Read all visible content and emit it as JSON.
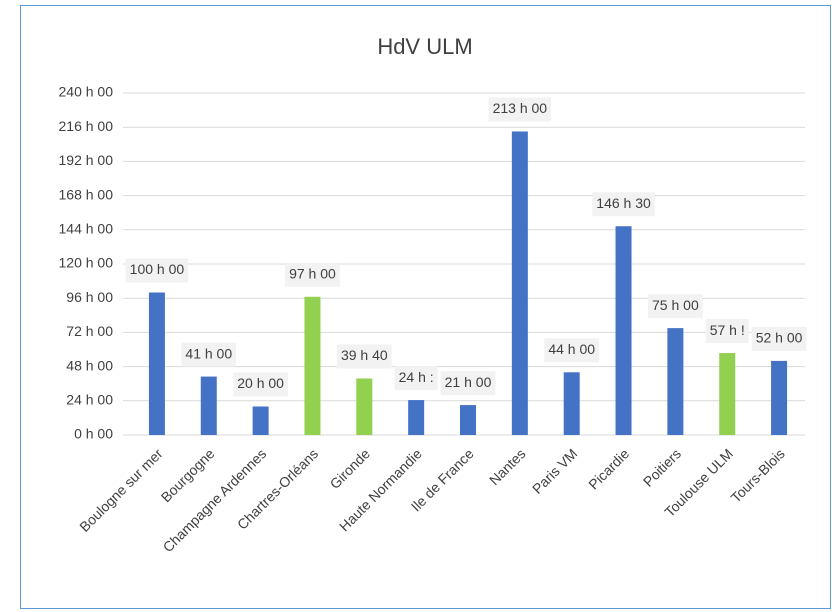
{
  "chart_data": {
    "type": "bar",
    "title": "HdV ULM",
    "categories": [
      "Boulogne sur mer",
      "Bourgogne",
      "Champagne Ardennes",
      "Chartres-Orléans",
      "Gironde",
      "Haute Normandie",
      "Ile de France",
      "Nantes",
      "Paris VM",
      "Picardie",
      "Poitiers",
      "Toulouse ULM",
      "Tours-Blois"
    ],
    "values": [
      100,
      41,
      20,
      97,
      39.667,
      24.5,
      21,
      213,
      44,
      146.5,
      75,
      57.5,
      52
    ],
    "value_labels": [
      "100 h 00",
      "41 h 00",
      "20 h 00",
      "97 h 00",
      "39 h 40",
      "24 h :",
      "21 h 00",
      "213 h 00",
      "44 h 00",
      "146 h 30",
      "75 h 00",
      "57 h !",
      "52 h 00"
    ],
    "colors": [
      "#4472c4",
      "#4472c4",
      "#4472c4",
      "#92d050",
      "#92d050",
      "#4472c4",
      "#4472c4",
      "#4472c4",
      "#4472c4",
      "#4472c4",
      "#4472c4",
      "#92d050",
      "#4472c4"
    ],
    "ylim": [
      0,
      240
    ],
    "yticks": [
      {
        "value": 0,
        "label": "0 h 00"
      },
      {
        "value": 24,
        "label": "24 h 00"
      },
      {
        "value": 48,
        "label": "48 h 00"
      },
      {
        "value": 72,
        "label": "72 h 00"
      },
      {
        "value": 96,
        "label": "96 h 00"
      },
      {
        "value": 120,
        "label": "120 h 00"
      },
      {
        "value": 144,
        "label": "144 h 00"
      },
      {
        "value": 168,
        "label": "168 h 00"
      },
      {
        "value": 192,
        "label": "192 h 00"
      },
      {
        "value": 216,
        "label": "216 h 00"
      },
      {
        "value": 240,
        "label": "240 h 00"
      }
    ],
    "grid": true
  }
}
